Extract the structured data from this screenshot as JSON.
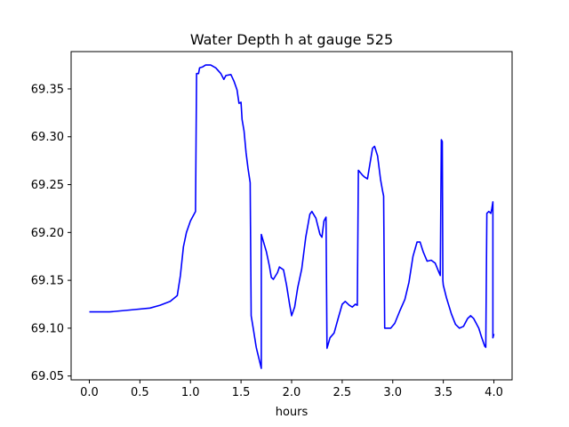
{
  "chart_data": {
    "type": "line",
    "title": "Water Depth h at gauge 525",
    "xlabel": "hours",
    "ylabel": "",
    "xlim": [
      -0.18,
      4.18
    ],
    "ylim": [
      69.046,
      69.389
    ],
    "xticks": [
      0.0,
      0.5,
      1.0,
      1.5,
      2.0,
      2.5,
      3.0,
      3.5,
      4.0
    ],
    "xtick_labels": [
      "0.0",
      "0.5",
      "1.0",
      "1.5",
      "2.0",
      "2.5",
      "3.0",
      "3.5",
      "4.0"
    ],
    "yticks": [
      69.05,
      69.1,
      69.15,
      69.2,
      69.25,
      69.3,
      69.35
    ],
    "ytick_labels": [
      "69.05",
      "69.10",
      "69.15",
      "69.20",
      "69.25",
      "69.30",
      "69.35"
    ],
    "grid": false,
    "series": [
      {
        "color": "#0000ff",
        "points": [
          [
            0.0,
            69.117
          ],
          [
            0.2,
            69.117
          ],
          [
            0.4,
            69.119
          ],
          [
            0.6,
            69.121
          ],
          [
            0.7,
            69.124
          ],
          [
            0.8,
            69.128
          ],
          [
            0.87,
            69.134
          ],
          [
            0.9,
            69.155
          ],
          [
            0.93,
            69.185
          ],
          [
            0.96,
            69.2
          ],
          [
            1.0,
            69.212
          ],
          [
            1.05,
            69.222
          ],
          [
            1.06,
            69.366
          ],
          [
            1.08,
            69.366
          ],
          [
            1.09,
            69.372
          ],
          [
            1.12,
            69.373
          ],
          [
            1.15,
            69.375
          ],
          [
            1.2,
            69.375
          ],
          [
            1.25,
            69.372
          ],
          [
            1.3,
            69.366
          ],
          [
            1.33,
            69.36
          ],
          [
            1.35,
            69.364
          ],
          [
            1.4,
            69.365
          ],
          [
            1.43,
            69.358
          ],
          [
            1.46,
            69.349
          ],
          [
            1.48,
            69.335
          ],
          [
            1.5,
            69.336
          ],
          [
            1.51,
            69.318
          ],
          [
            1.53,
            69.306
          ],
          [
            1.55,
            69.283
          ],
          [
            1.57,
            69.266
          ],
          [
            1.59,
            69.252
          ],
          [
            1.6,
            69.113
          ],
          [
            1.62,
            69.1
          ],
          [
            1.65,
            69.08
          ],
          [
            1.7,
            69.058
          ],
          [
            1.7,
            69.198
          ],
          [
            1.75,
            69.18
          ],
          [
            1.78,
            69.165
          ],
          [
            1.8,
            69.153
          ],
          [
            1.82,
            69.151
          ],
          [
            1.86,
            69.158
          ],
          [
            1.88,
            69.164
          ],
          [
            1.92,
            69.161
          ],
          [
            1.95,
            69.145
          ],
          [
            1.98,
            69.125
          ],
          [
            2.0,
            69.113
          ],
          [
            2.03,
            69.122
          ],
          [
            2.06,
            69.142
          ],
          [
            2.1,
            69.162
          ],
          [
            2.14,
            69.195
          ],
          [
            2.18,
            69.219
          ],
          [
            2.2,
            69.222
          ],
          [
            2.24,
            69.215
          ],
          [
            2.28,
            69.198
          ],
          [
            2.3,
            69.195
          ],
          [
            2.32,
            69.212
          ],
          [
            2.34,
            69.216
          ],
          [
            2.35,
            69.079
          ],
          [
            2.38,
            69.09
          ],
          [
            2.42,
            69.095
          ],
          [
            2.46,
            69.11
          ],
          [
            2.5,
            69.125
          ],
          [
            2.53,
            69.128
          ],
          [
            2.57,
            69.124
          ],
          [
            2.6,
            69.122
          ],
          [
            2.63,
            69.125
          ],
          [
            2.65,
            69.124
          ],
          [
            2.66,
            69.265
          ],
          [
            2.7,
            69.26
          ],
          [
            2.72,
            69.258
          ],
          [
            2.75,
            69.256
          ],
          [
            2.78,
            69.275
          ],
          [
            2.8,
            69.288
          ],
          [
            2.82,
            69.29
          ],
          [
            2.85,
            69.28
          ],
          [
            2.88,
            69.255
          ],
          [
            2.9,
            69.243
          ],
          [
            2.91,
            69.238
          ],
          [
            2.92,
            69.1
          ],
          [
            2.98,
            69.1
          ],
          [
            3.02,
            69.105
          ],
          [
            3.07,
            69.118
          ],
          [
            3.12,
            69.13
          ],
          [
            3.16,
            69.148
          ],
          [
            3.2,
            69.175
          ],
          [
            3.24,
            69.19
          ],
          [
            3.27,
            69.19
          ],
          [
            3.3,
            69.18
          ],
          [
            3.34,
            69.17
          ],
          [
            3.38,
            69.171
          ],
          [
            3.42,
            69.168
          ],
          [
            3.45,
            69.16
          ],
          [
            3.47,
            69.155
          ],
          [
            3.48,
            69.297
          ],
          [
            3.49,
            69.295
          ],
          [
            3.495,
            69.15
          ],
          [
            3.5,
            69.145
          ],
          [
            3.53,
            69.132
          ],
          [
            3.58,
            69.115
          ],
          [
            3.62,
            69.104
          ],
          [
            3.66,
            69.1
          ],
          [
            3.7,
            69.102
          ],
          [
            3.74,
            69.11
          ],
          [
            3.77,
            69.113
          ],
          [
            3.8,
            69.11
          ],
          [
            3.85,
            69.1
          ],
          [
            3.88,
            69.09
          ],
          [
            3.91,
            69.081
          ],
          [
            3.92,
            69.08
          ],
          [
            3.93,
            69.22
          ],
          [
            3.95,
            69.222
          ],
          [
            3.97,
            69.22
          ],
          [
            3.98,
            69.225
          ],
          [
            3.99,
            69.232
          ],
          [
            3.99,
            69.09
          ],
          [
            4.0,
            69.094
          ]
        ]
      }
    ]
  }
}
